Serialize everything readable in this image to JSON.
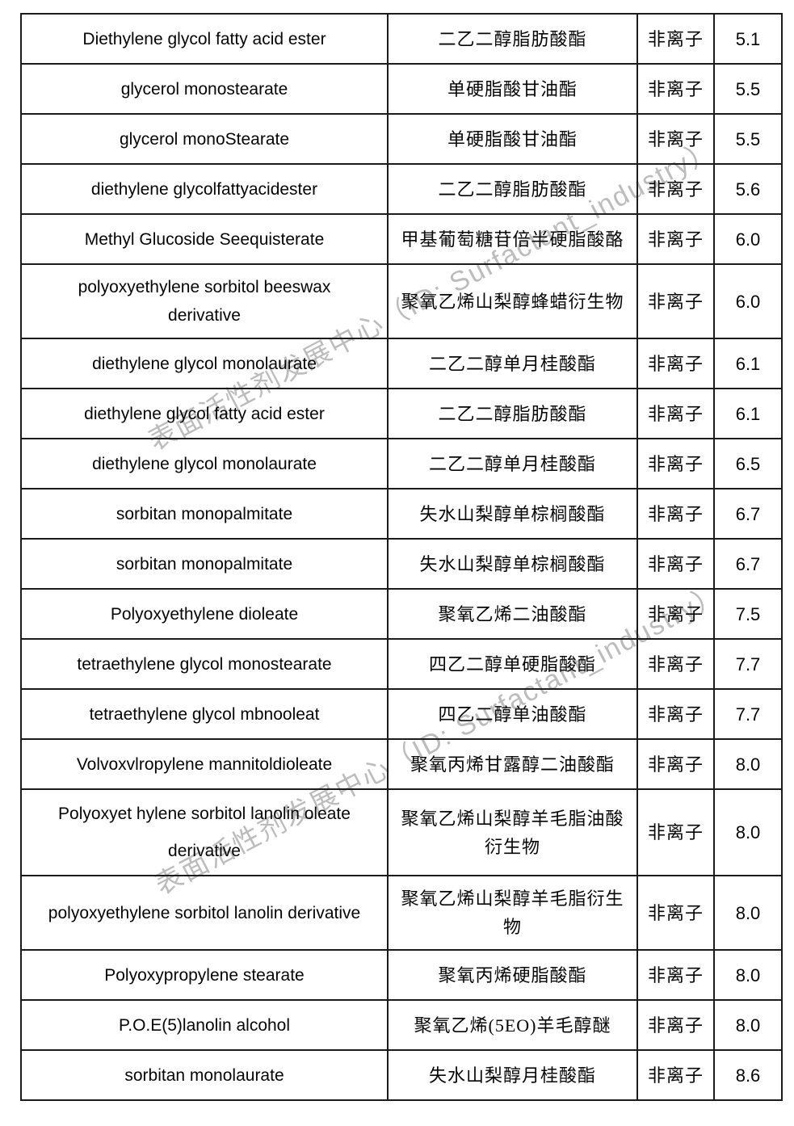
{
  "watermark": {
    "text": "表面活性剂发展中心（ID: Surfactant_industry）",
    "color": "#b1b1b1"
  },
  "table": {
    "columns": [
      "english_name",
      "chinese_name",
      "ionic_type",
      "hlb_value"
    ],
    "ionic_type_label": "非离子",
    "rows": [
      {
        "english": "Diethylene glycol fatty acid ester",
        "chinese": "二乙二醇脂肪酸酯",
        "type": "非离子",
        "value": "5.1"
      },
      {
        "english": "glycerol monostearate",
        "chinese": "单硬脂酸甘油酯",
        "type": "非离子",
        "value": "5.5"
      },
      {
        "english": "glycerol monoStearate",
        "chinese": "单硬脂酸甘油酯",
        "type": "非离子",
        "value": "5.5"
      },
      {
        "english": "diethylene glycolfattyacidester",
        "chinese": "二乙二醇脂肪酸酯",
        "type": "非离子",
        "value": "5.6"
      },
      {
        "english": "Methyl Glucoside Seequisterate",
        "chinese": "甲基葡萄糖苷倍半硬脂酸酪",
        "type": "非离子",
        "value": "6.0"
      },
      {
        "english": "polyoxyethylene sorbitol beeswax\nderivative",
        "chinese": "聚氧乙烯山梨醇蜂蜡衍生物",
        "type": "非离子",
        "value": "6.0"
      },
      {
        "english": "diethylene glycol monolaurate",
        "chinese": "二乙二醇单月桂酸酯",
        "type": "非离子",
        "value": "6.1"
      },
      {
        "english": "diethylene glycol fatty acid ester",
        "chinese": "二乙二醇脂肪酸酯",
        "type": "非离子",
        "value": "6.1"
      },
      {
        "english": "diethylene glycol monolaurate",
        "chinese": "二乙二醇单月桂酸酯",
        "type": "非离子",
        "value": "6.5"
      },
      {
        "english": "sorbitan monopalmitate",
        "chinese": "失水山梨醇单棕榈酸酯",
        "type": "非离子",
        "value": "6.7"
      },
      {
        "english": "sorbitan monopalmitate",
        "chinese": "失水山梨醇单棕榈酸酯",
        "type": "非离子",
        "value": "6.7"
      },
      {
        "english": "Polyoxyethylene dioleate",
        "chinese": "聚氧乙烯二油酸酯",
        "type": "非离子",
        "value": "7.5"
      },
      {
        "english": "tetraethylene glycol monostearate",
        "chinese": "四乙二醇单硬脂酸酯",
        "type": "非离子",
        "value": "7.7"
      },
      {
        "english": "tetraethylene glycol mbnooleat",
        "chinese": "四乙二醇单油酸酯",
        "type": "非离子",
        "value": "7.7"
      },
      {
        "english": "Volvoxvlropylene mannitoldioleate",
        "chinese": "聚氧丙烯甘露醇二油酸酯",
        "type": "非离子",
        "value": "8.0"
      },
      {
        "english": "Polyoxyet hylene sorbitol lanolin oleate\nderivative",
        "chinese": "聚氧乙烯山梨醇羊毛脂油酸\n衍生物",
        "type": "非离子",
        "value": "8.0"
      },
      {
        "english": "polyoxyethylene sorbitol lanolin derivative",
        "chinese": "聚氧乙烯山梨醇羊毛脂衍生\n物",
        "type": "非离子",
        "value": "8.0"
      },
      {
        "english": "Polyoxypropylene stearate",
        "chinese": "聚氧丙烯硬脂酸酯",
        "type": "非离子",
        "value": "8.0"
      },
      {
        "english": "P.O.E(5)lanolin alcohol",
        "chinese": "聚氧乙烯(5EO)羊毛醇醚",
        "type": "非离子",
        "value": "8.0"
      },
      {
        "english": "sorbitan monolaurate",
        "chinese": "失水山梨醇月桂酸酯",
        "type": "非离子",
        "value": "8.6"
      }
    ]
  }
}
